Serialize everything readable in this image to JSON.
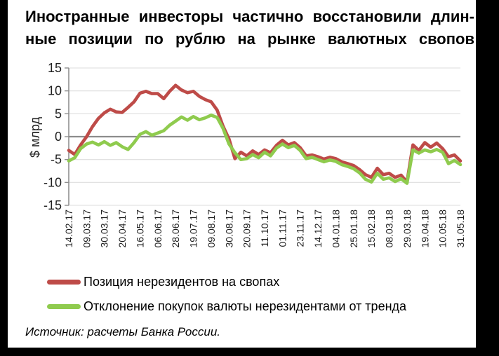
{
  "title": {
    "line1": "Иностранные инвесторы частично восстановили длин-",
    "line2": "ные позиции по рублю на рынке валютных свопов"
  },
  "source": "Источник: расчеты Банка России.",
  "colors": {
    "frame": "#000000",
    "background": "#ffffff",
    "grid": "#dedede",
    "zero_line": "#8c8c8c",
    "axis": "#8f8f8f",
    "tick_text": "#1f1f1f"
  },
  "chart_data": {
    "type": "line",
    "title": "",
    "xlabel": "",
    "ylabel": "$ млрд",
    "ylim": [
      -15,
      15
    ],
    "y_ticks": [
      15,
      10,
      5,
      0,
      -5,
      -10,
      -15
    ],
    "grid": true,
    "legend_position": "bottom-left",
    "x_tick_every": 3,
    "x_tick_labels": [
      "14.02.17",
      "09.03.17",
      "30.03.17",
      "20.04.17",
      "16.05.17",
      "06.06.17",
      "28.06.17",
      "19.07.17",
      "09.08.17",
      "30.08.17",
      "20.09.17",
      "11.10.17",
      "01.11.17",
      "23.11.17",
      "14.12.17",
      "04.01.18",
      "25.01.18",
      "15.02.18",
      "08.03.18",
      "29.03.18",
      "19.04.18",
      "10.05.18",
      "31.05.18"
    ],
    "series": [
      {
        "name": "Позиция нерезидентов на свопах",
        "color": "#be4b48",
        "values": [
          -3.0,
          -3.9,
          -1.8,
          0.0,
          2.2,
          4.0,
          5.2,
          6.0,
          5.4,
          5.3,
          6.4,
          7.6,
          9.5,
          9.9,
          9.4,
          9.4,
          8.3,
          9.9,
          11.2,
          10.2,
          9.6,
          9.9,
          8.8,
          8.1,
          7.6,
          5.8,
          2.3,
          -0.5,
          -4.8,
          -3.4,
          -4.2,
          -3.1,
          -3.9,
          -2.9,
          -3.5,
          -1.9,
          -0.8,
          -1.8,
          -1.3,
          -2.4,
          -4.2,
          -4.0,
          -4.4,
          -4.9,
          -4.5,
          -4.8,
          -5.5,
          -5.9,
          -6.3,
          -7.2,
          -8.3,
          -8.9,
          -6.9,
          -8.3,
          -8.0,
          -8.9,
          -8.4,
          -9.9,
          -1.8,
          -3.0,
          -1.3,
          -2.3,
          -1.4,
          -2.6,
          -4.4,
          -4.0,
          -5.3
        ]
      },
      {
        "name": "Отклонение покупок валюты нерезидентами от тренда",
        "color": "#8fcb4e",
        "values": [
          -5.3,
          -4.6,
          -2.6,
          -1.6,
          -1.2,
          -1.8,
          -1.1,
          -1.9,
          -1.3,
          -2.2,
          -2.8,
          -1.3,
          0.5,
          1.1,
          0.3,
          0.8,
          1.3,
          2.5,
          3.4,
          4.3,
          3.6,
          4.4,
          3.7,
          4.1,
          4.7,
          4.2,
          1.8,
          -1.6,
          -3.5,
          -5.0,
          -4.8,
          -3.9,
          -4.6,
          -3.4,
          -4.2,
          -2.5,
          -1.6,
          -2.4,
          -1.9,
          -3.0,
          -4.8,
          -4.5,
          -5.0,
          -5.5,
          -5.1,
          -5.4,
          -6.1,
          -6.5,
          -7.0,
          -7.9,
          -9.3,
          -9.9,
          -8.0,
          -9.3,
          -9.0,
          -9.8,
          -9.2,
          -10.2,
          -2.9,
          -3.6,
          -2.9,
          -3.3,
          -2.8,
          -3.4,
          -5.9,
          -5.2,
          -6.1
        ]
      }
    ]
  }
}
